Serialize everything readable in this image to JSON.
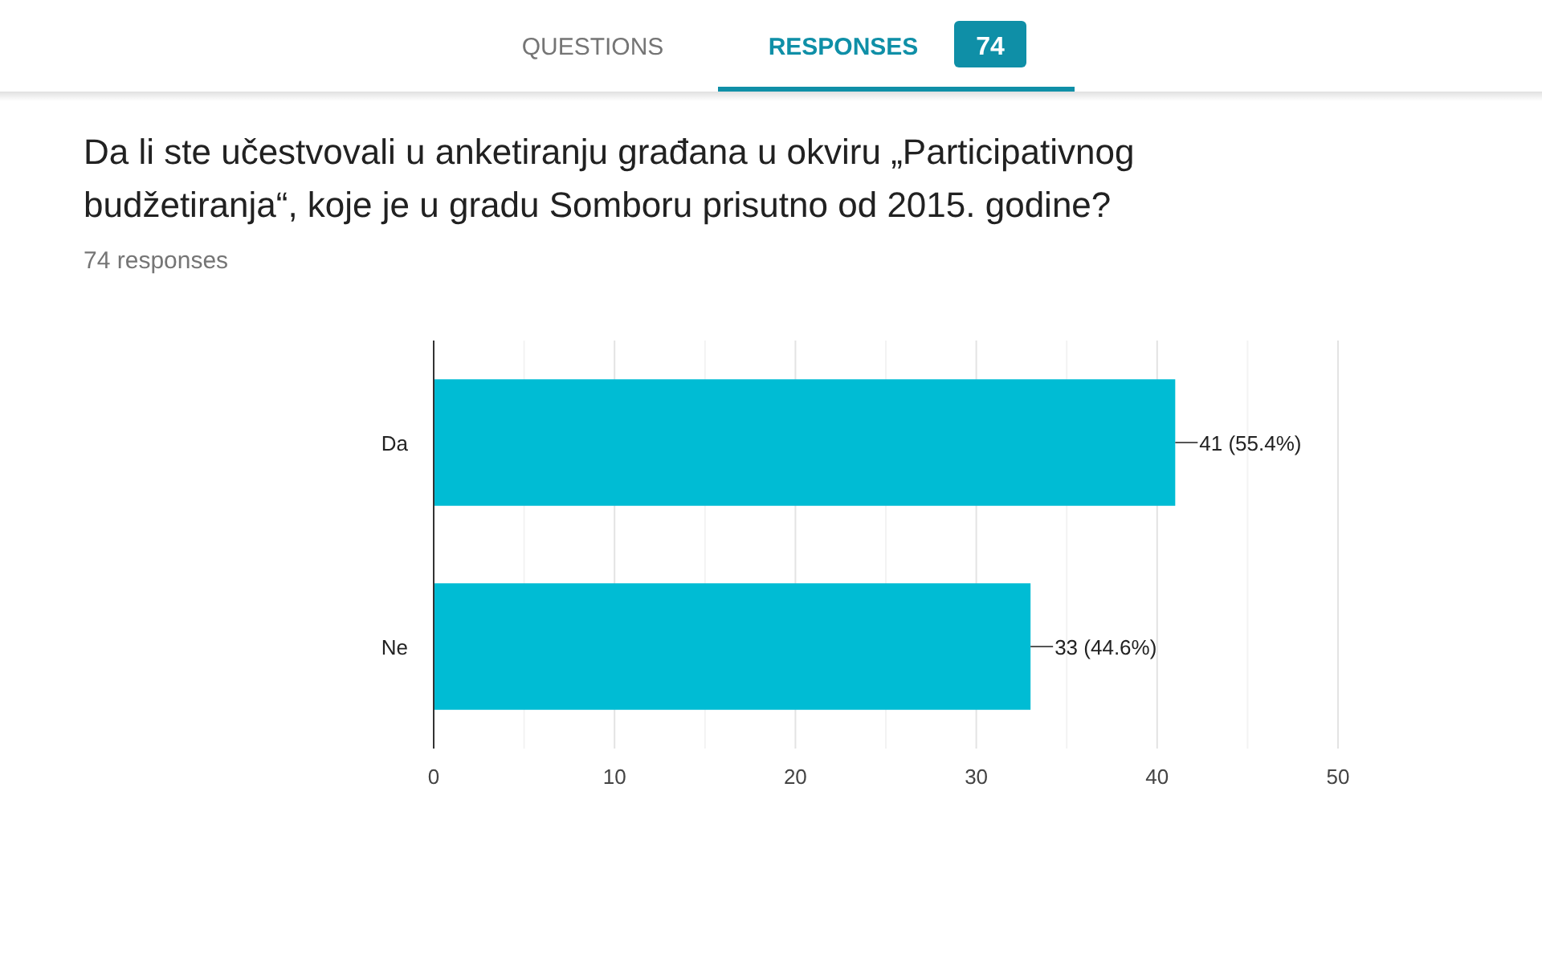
{
  "chart_data": {
    "type": "bar",
    "orientation": "horizontal",
    "title": "Da li ste učestvovali u anketiranju građana u okviru „Participativnog budžetiranja“, koje je u gradu Somboru prisutno od 2015. godine?",
    "subtitle": "74 responses",
    "annotations": [
      "QUESTIONS",
      "RESPONSES",
      "74"
    ],
    "categories": [
      "Da",
      "Ne"
    ],
    "values": [
      41,
      33
    ],
    "color": "#00bcd4",
    "value_labels": [
      "41 (55.4%)",
      "33 (44.6%)"
    ],
    "xlim": [
      0,
      50
    ],
    "xticks": [
      0,
      {
        "value": 5,
        "label": null
      },
      10,
      {
        "value": 15,
        "label": null
      },
      20,
      {
        "value": 25,
        "label": null
      },
      30,
      {
        "value": 35,
        "label": null
      },
      40,
      {
        "value": 45,
        "label": null
      },
      50
    ],
    "grid": "x"
  }
}
